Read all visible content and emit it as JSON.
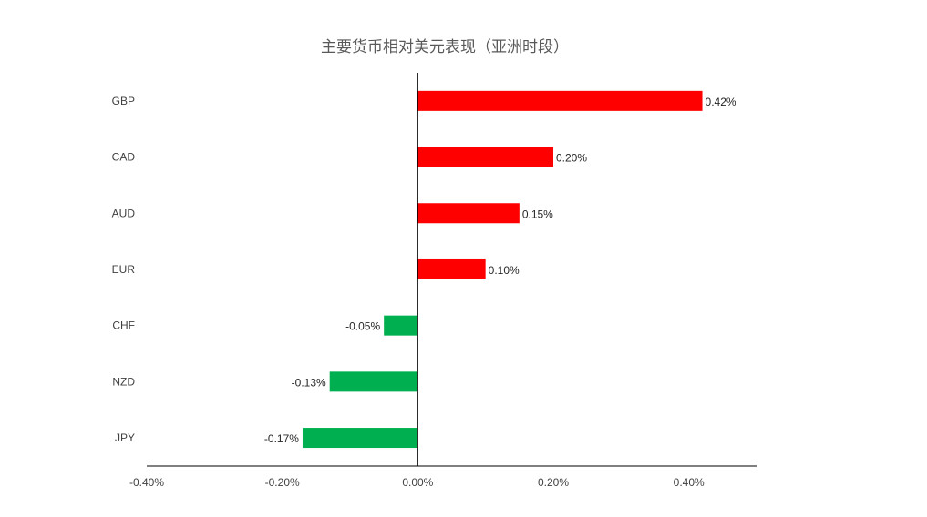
{
  "chart_data": {
    "type": "bar",
    "orientation": "horizontal",
    "title": "主要货币相对美元表现（亚洲时段）",
    "categories": [
      "GBP",
      "CAD",
      "AUD",
      "EUR",
      "CHF",
      "NZD",
      "JPY"
    ],
    "values": [
      0.42,
      0.2,
      0.15,
      0.1,
      -0.05,
      -0.13,
      -0.17
    ],
    "data_labels": [
      "0.42%",
      "0.20%",
      "0.15%",
      "0.10%",
      "-0.05%",
      "-0.13%",
      "-0.17%"
    ],
    "xlim": [
      -0.4,
      0.5
    ],
    "xticks": [
      -0.4,
      -0.2,
      0.0,
      0.2,
      0.4
    ],
    "xtick_labels": [
      "-0.40%",
      "-0.20%",
      "0.00%",
      "0.20%",
      "0.40%"
    ],
    "xlabel": "",
    "ylabel": "",
    "grid": false,
    "legend": "none",
    "colors": {
      "positive": "#ff0000",
      "negative": "#00b050",
      "axis": "#000000"
    }
  }
}
